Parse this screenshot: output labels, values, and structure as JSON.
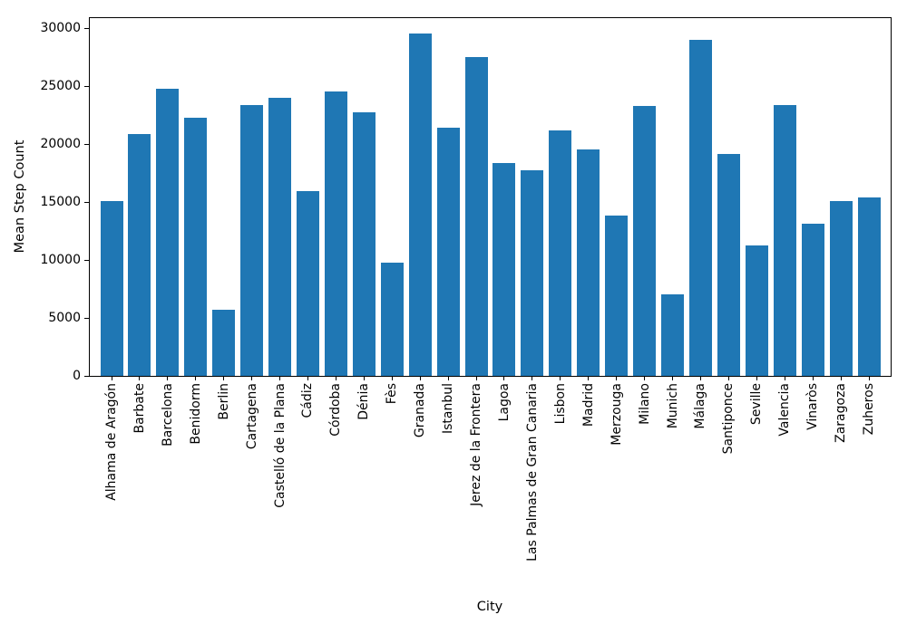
{
  "chart_data": {
    "type": "bar",
    "title": "",
    "xlabel": "City",
    "ylabel": "Mean Step Count",
    "categories": [
      "Alhama de Aragón",
      "Barbate",
      "Barcelona",
      "Benidorm",
      "Berlin",
      "Cartagena",
      "Castelló de la Plana",
      "Cádiz",
      "Córdoba",
      "Dénia",
      "Fès",
      "Granada",
      "Istanbul",
      "Jerez de la Frontera",
      "Lagoa",
      "Las Palmas de Gran Canaria",
      "Lisbon",
      "Madrid",
      "Merzouga",
      "Milano",
      "Munich",
      "Málaga",
      "Santiponce",
      "Seville",
      "Valencia",
      "Vinaròs",
      "Zaragoza",
      "Zuheros"
    ],
    "values": [
      15100,
      20900,
      24800,
      22300,
      5700,
      23400,
      24000,
      15900,
      24500,
      22700,
      9750,
      29500,
      21400,
      27500,
      18400,
      17700,
      21200,
      19500,
      13800,
      23300,
      7050,
      28950,
      19150,
      11250,
      23350,
      13150,
      15050,
      15400
    ],
    "yticks": [
      0,
      5000,
      10000,
      15000,
      20000,
      25000,
      30000
    ],
    "ylim": [
      0,
      30860
    ],
    "bar_color": "#1f77b4",
    "grid": false,
    "legend_position": "none"
  }
}
